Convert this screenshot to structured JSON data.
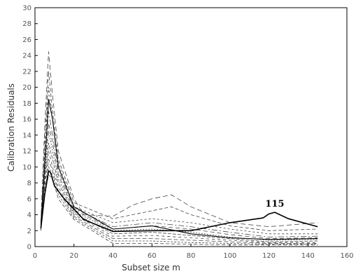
{
  "chart_data": {
    "type": "line",
    "xlabel": "Subset size m",
    "ylabel": "Calibration Residuals",
    "xlim": [
      0,
      160
    ],
    "ylim": [
      0,
      30
    ],
    "x_ticks": [
      "0",
      "20",
      "40",
      "60",
      "80",
      "100",
      "120",
      "140",
      "160"
    ],
    "y_ticks": [
      "0",
      "2",
      "4",
      "6",
      "8",
      "10",
      "12",
      "14",
      "16",
      "18",
      "20",
      "22",
      "24",
      "26",
      "28",
      "30"
    ],
    "grid": false,
    "annotations": [
      {
        "text": "115",
        "x": 123,
        "y": 5.0
      }
    ],
    "highlighted_series": [
      {
        "x": [
          3,
          5,
          7,
          8,
          10,
          15,
          25,
          40,
          60,
          80,
          100,
          117,
          120,
          123,
          130,
          145
        ],
        "y": [
          2.3,
          6.5,
          9.5,
          9.3,
          7.6,
          6.0,
          3.4,
          1.9,
          2.0,
          2.0,
          3.0,
          3.6,
          4.1,
          4.3,
          3.5,
          2.5
        ]
      },
      {
        "x": [
          3,
          5,
          7,
          9,
          12,
          20,
          40,
          60,
          80,
          100,
          120,
          145
        ],
        "y": [
          2.4,
          10,
          18.5,
          16,
          10,
          5.0,
          2.2,
          2.6,
          1.6,
          1.1,
          0.9,
          1.0
        ]
      }
    ],
    "series": [
      {
        "x": [
          3,
          5,
          7,
          9,
          12,
          20,
          25,
          40,
          50,
          60,
          70,
          80,
          100,
          120,
          145
        ],
        "y": [
          3,
          15,
          24.5,
          19,
          12,
          6.0,
          4.0,
          3.8,
          5.2,
          6.0,
          6.5,
          5.0,
          3.0,
          2.5,
          3.0
        ]
      },
      {
        "x": [
          3,
          5,
          7,
          9,
          12,
          20,
          40,
          60,
          70,
          80,
          100,
          120,
          145
        ],
        "y": [
          3,
          13,
          22,
          17,
          11,
          5.5,
          3.5,
          4.5,
          5.0,
          4.0,
          2.6,
          2.0,
          2.2
        ]
      },
      {
        "x": [
          3,
          5,
          7,
          9,
          12,
          20,
          40,
          60,
          80,
          100,
          120,
          145
        ],
        "y": [
          2.5,
          12,
          20,
          16,
          10.5,
          5.0,
          3.0,
          3.5,
          3.0,
          2.2,
          1.6,
          1.6
        ]
      },
      {
        "x": [
          3,
          5,
          7,
          9,
          12,
          20,
          40,
          60,
          80,
          100,
          120,
          145
        ],
        "y": [
          2.6,
          11,
          17,
          14,
          9.5,
          4.8,
          2.5,
          3.0,
          2.5,
          1.8,
          1.2,
          1.3
        ]
      },
      {
        "x": [
          3,
          5,
          7,
          9,
          12,
          20,
          40,
          60,
          80,
          100,
          120,
          145
        ],
        "y": [
          2.5,
          10,
          15.5,
          13,
          9.0,
          4.6,
          2.2,
          2.6,
          2.2,
          1.5,
          1.0,
          1.1
        ]
      },
      {
        "x": [
          3,
          5,
          7,
          9,
          12,
          20,
          40,
          60,
          80,
          100,
          120,
          145
        ],
        "y": [
          2.4,
          9,
          14.5,
          12,
          8.5,
          4.4,
          2.0,
          2.2,
          1.8,
          1.2,
          0.8,
          0.9
        ]
      },
      {
        "x": [
          3,
          5,
          7,
          9,
          12,
          20,
          40,
          60,
          80,
          100,
          120,
          145
        ],
        "y": [
          2.3,
          8.5,
          13,
          11,
          8.0,
          4.2,
          1.6,
          1.8,
          1.4,
          1.0,
          0.6,
          0.7
        ]
      },
      {
        "x": [
          3,
          5,
          7,
          9,
          12,
          20,
          40,
          60,
          80,
          100,
          120,
          145
        ],
        "y": [
          2.2,
          8,
          12,
          10,
          7.5,
          4.0,
          1.3,
          1.4,
          1.1,
          0.8,
          0.5,
          0.5
        ]
      },
      {
        "x": [
          3,
          5,
          7,
          9,
          12,
          20,
          40,
          60,
          80,
          100,
          120,
          145
        ],
        "y": [
          2.2,
          7.5,
          11,
          9.5,
          7.0,
          3.8,
          1.0,
          1.0,
          0.8,
          0.6,
          0.4,
          0.4
        ]
      },
      {
        "x": [
          3,
          5,
          7,
          9,
          12,
          20,
          40,
          60,
          80,
          100,
          120,
          145
        ],
        "y": [
          2.1,
          7,
          10,
          9.0,
          6.5,
          3.6,
          0.7,
          0.7,
          0.5,
          0.4,
          0.3,
          0.3
        ]
      },
      {
        "x": [
          3,
          5,
          7,
          9,
          12,
          20,
          40,
          60,
          80,
          100,
          120,
          145
        ],
        "y": [
          2.0,
          6.5,
          9,
          8.5,
          6.0,
          3.4,
          0.4,
          0.4,
          0.3,
          0.2,
          0.2,
          0.2
        ]
      }
    ]
  }
}
